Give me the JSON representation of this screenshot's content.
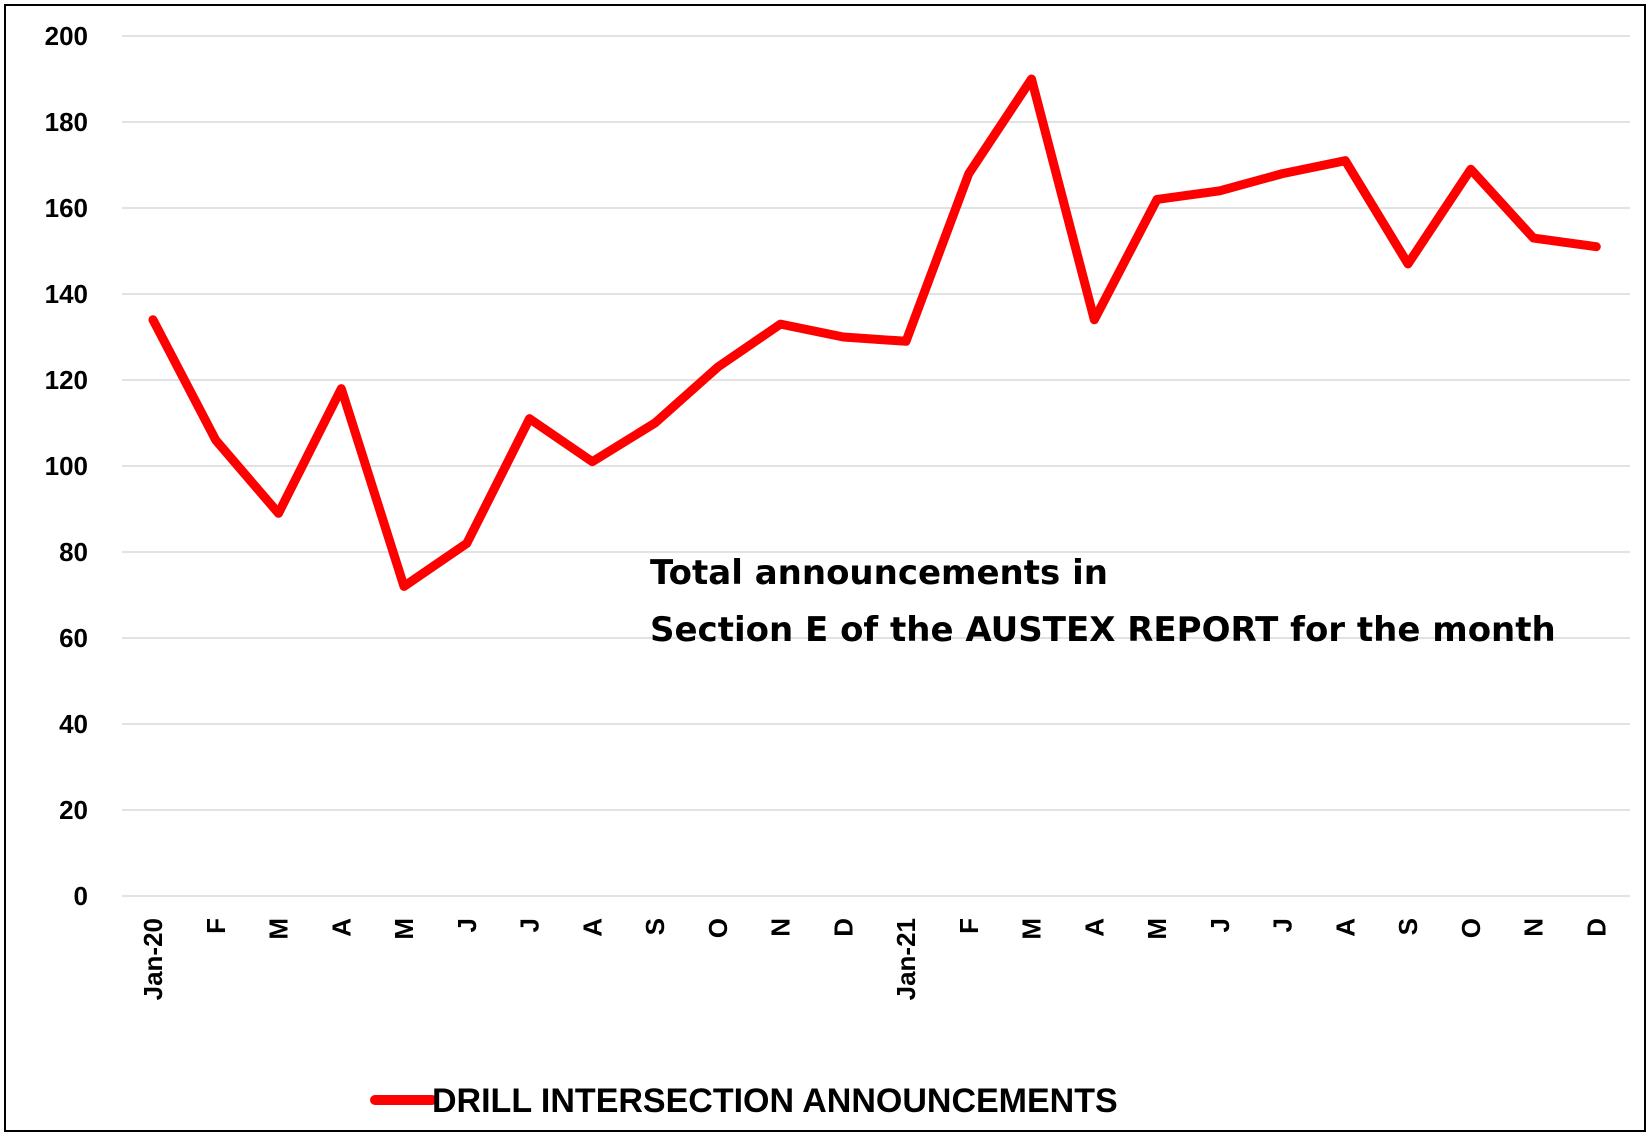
{
  "chart_data": {
    "type": "line",
    "categories": [
      "Jan-20",
      "F",
      "M",
      "A",
      "M",
      "J",
      "J",
      "A",
      "S",
      "O",
      "N",
      "D",
      "Jan-21",
      "F",
      "M",
      "A",
      "M",
      "J",
      "J",
      "A",
      "S",
      "O",
      "N",
      "D"
    ],
    "series": [
      {
        "name": "DRILL INTERSECTION ANNOUNCEMENTS",
        "color": "#ff0000",
        "values": [
          134,
          106,
          89,
          118,
          72,
          82,
          111,
          101,
          110,
          123,
          133,
          130,
          129,
          168,
          190,
          134,
          162,
          164,
          168,
          171,
          147,
          169,
          153,
          151
        ]
      }
    ],
    "y_ticks": [
      0,
      20,
      40,
      60,
      80,
      100,
      120,
      140,
      160,
      180,
      200
    ],
    "ylim": [
      0,
      200
    ],
    "grid": true,
    "legend_position": "bottom",
    "annotation": [
      "Total announcements in",
      "Section E of the AUSTEX REPORT for the month"
    ],
    "title": "",
    "xlabel": "",
    "ylabel": ""
  }
}
